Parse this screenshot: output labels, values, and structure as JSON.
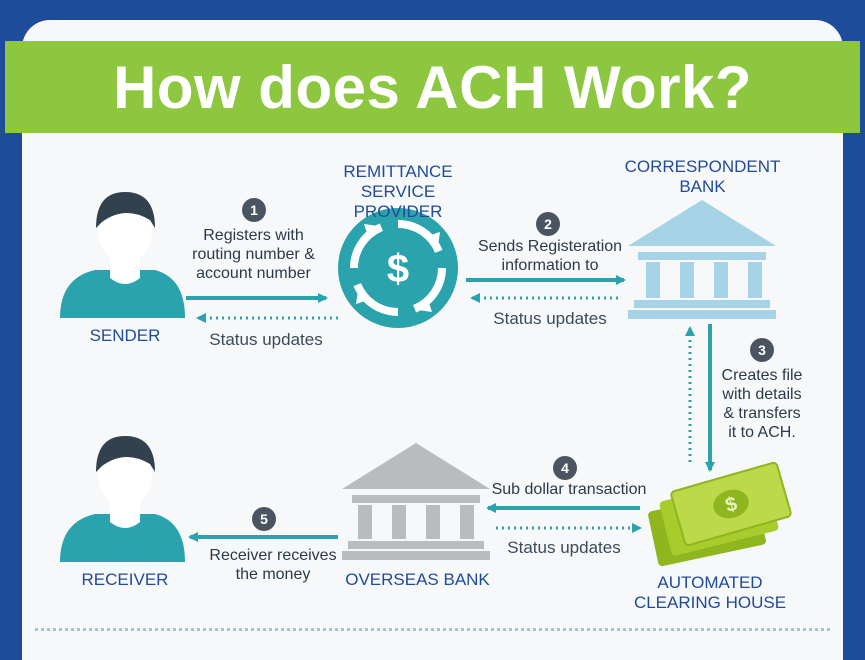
{
  "title": "How does ACH Work?",
  "nodes": {
    "sender": "SENDER",
    "remittance": [
      "REMITTANCE",
      "SERVICE PROVIDER"
    ],
    "correspondent": [
      "CORRESPONDENT",
      "BANK"
    ],
    "receiver": "RECEIVER",
    "overseas": "OVERSEAS BANK",
    "ach": [
      "AUTOMATED",
      "CLEARING HOUSE"
    ]
  },
  "steps": [
    {
      "num": "1",
      "lines": [
        "Registers with",
        "routing number &",
        "account number"
      ]
    },
    {
      "num": "2",
      "lines": [
        "Sends Registeration",
        "information to"
      ]
    },
    {
      "num": "3",
      "lines": [
        "Creates file",
        "with details",
        "& transfers",
        "it to ACH."
      ]
    },
    {
      "num": "4",
      "lines": [
        "Sub dollar transaction"
      ]
    },
    {
      "num": "5",
      "lines": [
        "Receiver receives",
        "the money"
      ]
    }
  ],
  "status_label": "Status updates",
  "colors": {
    "background": "#1f4b9b",
    "banner": "#8dc63f",
    "teal": "#2aa3ad",
    "bank_blue": "#a7d3e6",
    "bank_gray": "#b9bcbf",
    "money_green": "#a7cc2b"
  }
}
